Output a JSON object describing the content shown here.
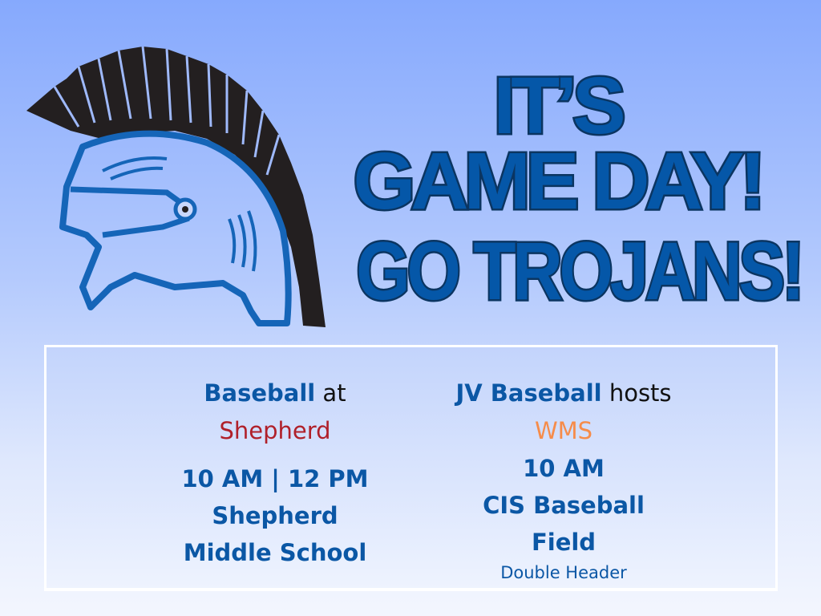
{
  "logo": {
    "icon": "trojan-helmet-icon",
    "colors": {
      "plume": "#231f20",
      "outline": "#1565b8"
    }
  },
  "headline": {
    "line1": "IT’S",
    "line2": "GAME DAY!",
    "line3": "GO TROJANS!",
    "color": "#0557a8",
    "stroke": "#0b3561"
  },
  "games": [
    {
      "team": "Baseball",
      "connector": " at",
      "opponent": "Shepherd",
      "opponent_color": "#b0202a",
      "time": "10 AM | 12 PM",
      "venue_line1": "Shepherd",
      "venue_line2": "Middle School"
    },
    {
      "team": "JV Baseball",
      "connector": " hosts",
      "opponent": "WMS",
      "opponent_color": "#f68c4a",
      "time": "10 AM",
      "venue_line1": "CIS Baseball",
      "venue_line2": "Field",
      "note": "Double Header"
    }
  ]
}
